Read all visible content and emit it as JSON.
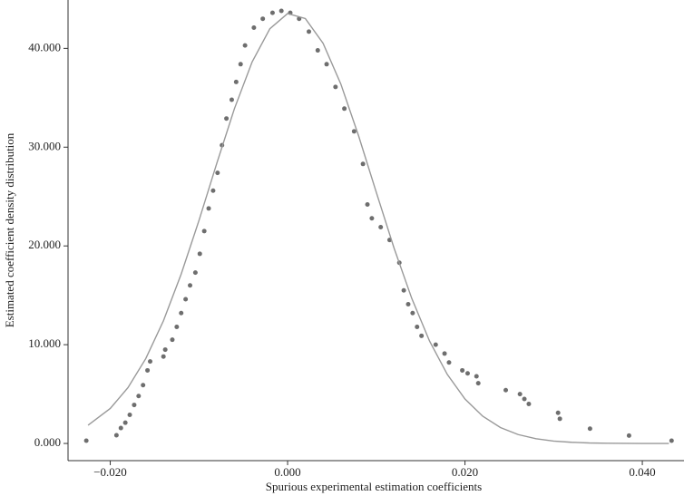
{
  "chart_data": {
    "type": "scatter",
    "x_label": "Spurious experimental estimation coefficients",
    "y_label": "Estimated coefficient density distribution",
    "xlim": [
      -0.02476,
      0.0447
    ],
    "ylim": [
      -1.74,
      44.9
    ],
    "xticks": [
      {
        "value": -0.02,
        "label": "−0.020"
      },
      {
        "value": 0,
        "label": "0.000"
      },
      {
        "value": 0.02,
        "label": "0.020"
      },
      {
        "value": 0.04,
        "label": "0.040"
      }
    ],
    "yticks": [
      {
        "value": 0,
        "label": "0.000"
      },
      {
        "value": 10,
        "label": "10.000"
      },
      {
        "value": 20,
        "label": "20.000"
      },
      {
        "value": 30,
        "label": "30.000"
      },
      {
        "value": 40,
        "label": "40.000"
      }
    ],
    "series": [
      {
        "type": "scatter",
        "color": "#6e6e6e",
        "x": [
          -0.0227,
          -0.0193,
          -0.0188,
          -0.0183,
          -0.0178,
          -0.0173,
          -0.0168,
          -0.0163,
          -0.0158,
          -0.0155,
          -0.014,
          -0.0138,
          -0.013,
          -0.0125,
          -0.012,
          -0.0115,
          -0.011,
          -0.0104,
          -0.0099,
          -0.0094,
          -0.0089,
          -0.0084,
          -0.0079,
          -0.0074,
          -0.0069,
          -0.0063,
          -0.0058,
          -0.0053,
          -0.0048,
          -0.0038,
          -0.0028,
          -0.0017,
          -0.0007,
          0.0003,
          0.0013,
          0.0024,
          0.0034,
          0.0044,
          0.0054,
          0.0064,
          0.0075,
          0.0085,
          0.009,
          0.0095,
          0.0105,
          0.0115,
          0.0126,
          0.0131,
          0.0136,
          0.0141,
          0.0146,
          0.0151,
          0.0167,
          0.0177,
          0.0182,
          0.0197,
          0.0203,
          0.0213,
          0.0215,
          0.0246,
          0.0262,
          0.0267,
          0.0272,
          0.0305,
          0.0307,
          0.0341,
          0.0385,
          0.0433
        ],
        "values": [
          0.28,
          0.83,
          1.56,
          2.1,
          2.9,
          3.9,
          4.8,
          5.9,
          7.4,
          8.3,
          8.8,
          9.5,
          10.5,
          11.8,
          13.2,
          14.6,
          16,
          17.3,
          19.2,
          21.5,
          23.8,
          25.6,
          27.4,
          30.2,
          32.9,
          34.8,
          36.6,
          38.4,
          40.3,
          42.1,
          43.0,
          43.6,
          43.8,
          43.6,
          43.0,
          41.7,
          39.8,
          38.4,
          36.1,
          33.9,
          31.6,
          28.3,
          24.2,
          22.8,
          21.9,
          20.6,
          18.3,
          15.5,
          14.1,
          13.2,
          11.8,
          10.9,
          10.0,
          9.1,
          8.2,
          7.4,
          7.1,
          6.8,
          6.1,
          5.4,
          5.0,
          4.5,
          4.0,
          3.1,
          2.5,
          1.5,
          0.8,
          0.28
        ]
      },
      {
        "type": "line",
        "color": "#999999",
        "x": [
          -0.0225,
          -0.02,
          -0.018,
          -0.016,
          -0.014,
          -0.012,
          -0.01,
          -0.008,
          -0.006,
          -0.004,
          -0.002,
          0,
          0.002,
          0.004,
          0.006,
          0.008,
          0.01,
          0.012,
          0.014,
          0.016,
          0.018,
          0.02,
          0.022,
          0.024,
          0.026,
          0.028,
          0.03,
          0.032,
          0.034,
          0.036,
          0.038,
          0.04,
          0.043
        ],
        "values": [
          1.85,
          3.54,
          5.65,
          8.58,
          12.42,
          17.15,
          22.56,
          28.32,
          33.89,
          38.63,
          41.99,
          43.53,
          43.02,
          40.52,
          36.4,
          31.16,
          25.43,
          19.79,
          14.69,
          10.38,
          7.0,
          4.5,
          2.76,
          1.61,
          0.9,
          0.48,
          0.24,
          0.12,
          0.05,
          0.02,
          0.01,
          0,
          0
        ]
      }
    ]
  }
}
